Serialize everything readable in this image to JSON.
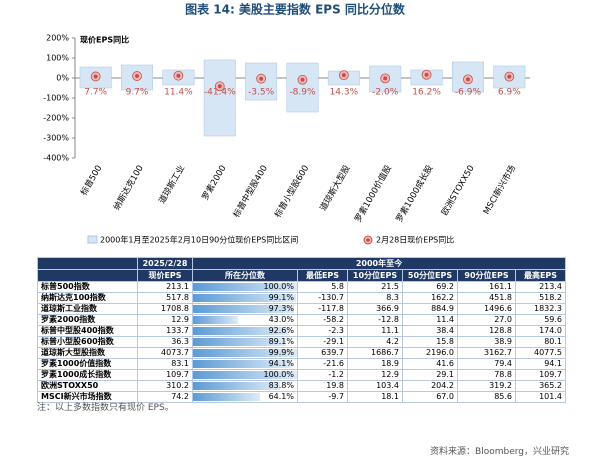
{
  "chart_data": {
    "type": "range_bar",
    "title": "图表 14: 美股主要指数 EPS 同比分位数",
    "y_axis_label": "现价EPS同比",
    "categories": [
      "标普500",
      "纳斯达克100",
      "道琼斯工业",
      "罗素2000",
      "标普中型股400",
      "标普小型股600",
      "道琼斯大型股",
      "罗素1000价值股",
      "罗素1000成长股",
      "欧洲STOXX50",
      "MSCI新兴市场"
    ],
    "series": [
      {
        "name": "2000年1月至2025年2月10日90分位现价EPS同比区间",
        "color": "#d6e6f5",
        "low": [
          -50,
          -60,
          -35,
          -290,
          -110,
          -170,
          -35,
          -70,
          -35,
          -70,
          -50
        ],
        "high": [
          55,
          65,
          40,
          90,
          75,
          75,
          35,
          60,
          40,
          80,
          60
        ]
      },
      {
        "name": "2月28日现价EPS同比",
        "color": "#c0504d",
        "values": [
          7.7,
          9.7,
          11.4,
          -41.4,
          -3.5,
          -8.9,
          14.3,
          -2.0,
          16.2,
          -6.9,
          6.9
        ],
        "value_labels": [
          "7.7%",
          "9.7%",
          "11.4%",
          "-41.4%",
          "-3.5%",
          "-8.9%",
          "14.3%",
          "-2.0%",
          "16.2%",
          "-6.9%",
          "6.9%"
        ]
      }
    ],
    "ylim": [
      -400,
      200
    ],
    "yticks": [
      {
        "value": 200,
        "label": "200%"
      },
      {
        "value": 100,
        "label": "100%"
      },
      {
        "value": 0,
        "label": "0%"
      },
      {
        "value": -100,
        "label": "-100%"
      },
      {
        "value": -200,
        "label": "-200%"
      },
      {
        "value": -300,
        "label": "-300%"
      },
      {
        "value": -400,
        "label": "-400%"
      }
    ],
    "grid": false
  },
  "table": {
    "group_headers": [
      "2025/2/28",
      "2000年至今"
    ],
    "columns": [
      "现价EPS",
      "所在分位数",
      "最低EPS",
      "10分位EPS",
      "50分位EPS",
      "90分位EPS",
      "最高EPS"
    ],
    "rows": [
      {
        "name": "标普500指数",
        "cells": [
          "213.1",
          {
            "value": 100.0,
            "label": "100.0%"
          },
          "5.8",
          "21.5",
          "69.2",
          "161.1",
          "213.4"
        ]
      },
      {
        "name": "纳斯达克100指数",
        "cells": [
          "517.8",
          {
            "value": 99.1,
            "label": "99.1%"
          },
          "-130.7",
          "8.3",
          "162.2",
          "451.8",
          "518.2"
        ]
      },
      {
        "name": "道琼斯工业指数",
        "cells": [
          "1708.8",
          {
            "value": 97.3,
            "label": "97.3%"
          },
          "-117.8",
          "366.9",
          "884.9",
          "1496.6",
          "1832.3"
        ]
      },
      {
        "name": "罗素2000指数",
        "cells": [
          "12.9",
          {
            "value": 43.0,
            "label": "43.0%"
          },
          "-58.2",
          "-12.8",
          "11.4",
          "27.0",
          "59.6"
        ]
      },
      {
        "name": "标普中型股400指数",
        "cells": [
          "133.7",
          {
            "value": 92.6,
            "label": "92.6%"
          },
          "-2.3",
          "11.1",
          "38.4",
          "128.8",
          "174.0"
        ]
      },
      {
        "name": "标普小型股600指数",
        "cells": [
          "36.3",
          {
            "value": 89.1,
            "label": "89.1%"
          },
          "-29.1",
          "4.2",
          "15.8",
          "38.9",
          "80.1"
        ]
      },
      {
        "name": "道琼斯大型股指数",
        "cells": [
          "4073.7",
          {
            "value": 99.9,
            "label": "99.9%"
          },
          "639.7",
          "1686.7",
          "2196.0",
          "3162.7",
          "4077.5"
        ]
      },
      {
        "name": "罗素1000价值指数",
        "cells": [
          "83.1",
          {
            "value": 94.1,
            "label": "94.1%"
          },
          "-21.6",
          "18.9",
          "41.6",
          "79.4",
          "94.1"
        ]
      },
      {
        "name": "罗素1000成长指数",
        "cells": [
          "109.7",
          {
            "value": 100.0,
            "label": "100.0%"
          },
          "-1.2",
          "12.9",
          "29.1",
          "78.8",
          "109.7"
        ]
      },
      {
        "name": "欧洲STOXX50",
        "cells": [
          "310.2",
          {
            "value": 83.8,
            "label": "83.8%"
          },
          "19.8",
          "103.4",
          "204.2",
          "319.2",
          "365.2"
        ]
      },
      {
        "name": "MSCI新兴市场指数",
        "cells": [
          "74.2",
          {
            "value": 64.1,
            "label": "64.1%"
          },
          "-9.7",
          "18.1",
          "67.0",
          "85.6",
          "101.4"
        ]
      }
    ]
  },
  "footer": {
    "note": "注：以上多数指数只有现价 EPS。",
    "source": "资料来源：Bloomberg，兴业研究"
  }
}
